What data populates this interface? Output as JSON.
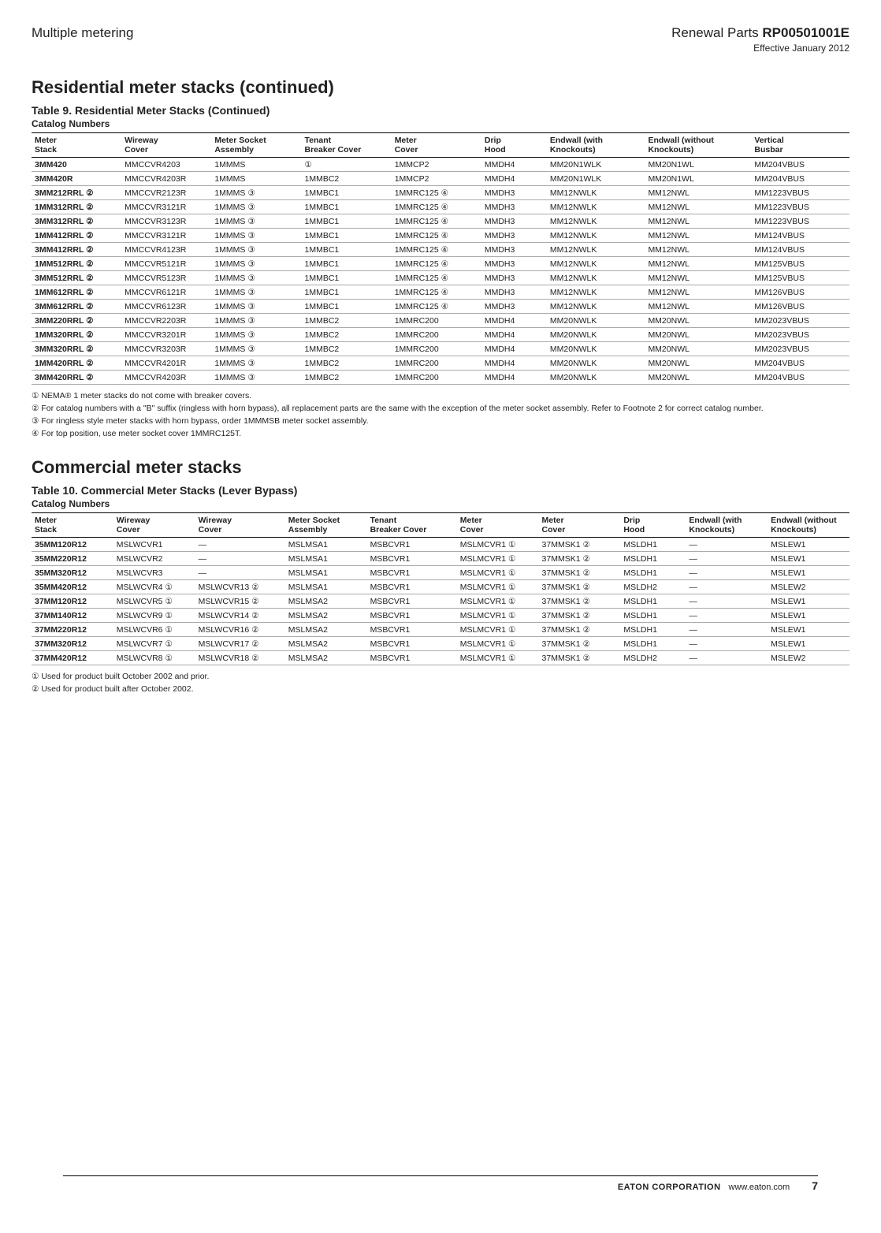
{
  "header": {
    "left": "Multiple metering",
    "right_label": "Renewal Parts ",
    "right_code": "RP00501001E",
    "effective": "Effective January 2012"
  },
  "section1": {
    "title": "Residential meter stacks (continued)",
    "table_caption": "Table 9.  Residential Meter Stacks (Continued)",
    "sub_caption": "Catalog Numbers",
    "headers": [
      "Meter\nStack",
      "Wireway\nCover",
      "Meter Socket\nAssembly",
      "Tenant\nBreaker Cover",
      "Meter\nCover",
      "Drip\nHood",
      "Endwall (with\nKnockouts)",
      "Endwall (without\nKnockouts)",
      "Vertical\nBusbar"
    ],
    "col_widths": [
      "11%",
      "11%",
      "11%",
      "11%",
      "11%",
      "8%",
      "12%",
      "13%",
      "12%"
    ],
    "rows": [
      {
        "c": [
          "3MM420",
          "MMCCVR4203",
          "1MMMS",
          "①",
          "1MMCP2",
          "MMDH4",
          "MM20N1WLK",
          "MM20N1WL",
          "MM204VBUS"
        ],
        "sup": [
          "",
          "",
          "",
          "",
          "",
          "",
          "",
          "",
          ""
        ]
      },
      {
        "c": [
          "3MM420R",
          "MMCCVR4203R",
          "1MMMS",
          "1MMBC2",
          "1MMCP2",
          "MMDH4",
          "MM20N1WLK",
          "MM20N1WL",
          "MM204VBUS"
        ],
        "sup": [
          "",
          "",
          "",
          "",
          "",
          "",
          "",
          "",
          ""
        ]
      },
      {
        "c": [
          "3MM212RRL ②",
          "MMCCVR2123R",
          "1MMMS ③",
          "1MMBC1",
          "1MMRC125 ④",
          "MMDH3",
          "MM12NWLK",
          "MM12NWL",
          "MM1223VBUS"
        ],
        "sup": [
          "",
          "",
          "",
          "",
          "",
          "",
          "",
          "",
          ""
        ]
      },
      {
        "c": [
          "1MM312RRL ②",
          "MMCCVR3121R",
          "1MMMS ③",
          "1MMBC1",
          "1MMRC125 ④",
          "MMDH3",
          "MM12NWLK",
          "MM12NWL",
          "MM1223VBUS"
        ],
        "sup": [
          "",
          "",
          "",
          "",
          "",
          "",
          "",
          "",
          ""
        ]
      },
      {
        "c": [
          "3MM312RRL ②",
          "MMCCVR3123R",
          "1MMMS ③",
          "1MMBC1",
          "1MMRC125 ④",
          "MMDH3",
          "MM12NWLK",
          "MM12NWL",
          "MM1223VBUS"
        ],
        "sup": [
          "",
          "",
          "",
          "",
          "",
          "",
          "",
          "",
          ""
        ]
      },
      {
        "c": [
          "1MM412RRL ②",
          "MMCCVR3121R",
          "1MMMS ③",
          "1MMBC1",
          "1MMRC125 ④",
          "MMDH3",
          "MM12NWLK",
          "MM12NWL",
          "MM124VBUS"
        ],
        "sup": [
          "",
          "",
          "",
          "",
          "",
          "",
          "",
          "",
          ""
        ]
      },
      {
        "c": [
          "3MM412RRL ②",
          "MMCCVR4123R",
          "1MMMS ③",
          "1MMBC1",
          "1MMRC125 ④",
          "MMDH3",
          "MM12NWLK",
          "MM12NWL",
          "MM124VBUS"
        ],
        "sup": [
          "",
          "",
          "",
          "",
          "",
          "",
          "",
          "",
          ""
        ]
      },
      {
        "c": [
          "1MM512RRL ②",
          "MMCCVR5121R",
          "1MMMS ③",
          "1MMBC1",
          "1MMRC125 ④",
          "MMDH3",
          "MM12NWLK",
          "MM12NWL",
          "MM125VBUS"
        ],
        "sup": [
          "",
          "",
          "",
          "",
          "",
          "",
          "",
          "",
          ""
        ]
      },
      {
        "c": [
          "3MM512RRL ②",
          "MMCCVR5123R",
          "1MMMS ③",
          "1MMBC1",
          "1MMRC125 ④",
          "MMDH3",
          "MM12NWLK",
          "MM12NWL",
          "MM125VBUS"
        ],
        "sup": [
          "",
          "",
          "",
          "",
          "",
          "",
          "",
          "",
          ""
        ]
      },
      {
        "c": [
          "1MM612RRL ②",
          "MMCCVR6121R",
          "1MMMS ③",
          "1MMBC1",
          "1MMRC125 ④",
          "MMDH3",
          "MM12NWLK",
          "MM12NWL",
          "MM126VBUS"
        ],
        "sup": [
          "",
          "",
          "",
          "",
          "",
          "",
          "",
          "",
          ""
        ]
      },
      {
        "c": [
          "3MM612RRL ②",
          "MMCCVR6123R",
          "1MMMS ③",
          "1MMBC1",
          "1MMRC125 ④",
          "MMDH3",
          "MM12NWLK",
          "MM12NWL",
          "MM126VBUS"
        ],
        "sup": [
          "",
          "",
          "",
          "",
          "",
          "",
          "",
          "",
          ""
        ]
      },
      {
        "c": [
          "3MM220RRL ②",
          "MMCCVR2203R",
          "1MMMS ③",
          "1MMBC2",
          "1MMRC200",
          "MMDH4",
          "MM20NWLK",
          "MM20NWL",
          "MM2023VBUS"
        ],
        "sup": [
          "",
          "",
          "",
          "",
          "",
          "",
          "",
          "",
          ""
        ]
      },
      {
        "c": [
          "1MM320RRL ②",
          "MMCCVR3201R",
          "1MMMS ③",
          "1MMBC2",
          "1MMRC200",
          "MMDH4",
          "MM20NWLK",
          "MM20NWL",
          "MM2023VBUS"
        ],
        "sup": [
          "",
          "",
          "",
          "",
          "",
          "",
          "",
          "",
          ""
        ]
      },
      {
        "c": [
          "3MM320RRL ②",
          "MMCCVR3203R",
          "1MMMS ③",
          "1MMBC2",
          "1MMRC200",
          "MMDH4",
          "MM20NWLK",
          "MM20NWL",
          "MM2023VBUS"
        ],
        "sup": [
          "",
          "",
          "",
          "",
          "",
          "",
          "",
          "",
          ""
        ]
      },
      {
        "c": [
          "1MM420RRL ②",
          "MMCCVR4201R",
          "1MMMS ③",
          "1MMBC2",
          "1MMRC200",
          "MMDH4",
          "MM20NWLK",
          "MM20NWL",
          "MM204VBUS"
        ],
        "sup": [
          "",
          "",
          "",
          "",
          "",
          "",
          "",
          "",
          ""
        ]
      },
      {
        "c": [
          "3MM420RRL ②",
          "MMCCVR4203R",
          "1MMMS ③",
          "1MMBC2",
          "1MMRC200",
          "MMDH4",
          "MM20NWLK",
          "MM20NWL",
          "MM204VBUS"
        ],
        "sup": [
          "",
          "",
          "",
          "",
          "",
          "",
          "",
          "",
          ""
        ]
      }
    ],
    "footnotes": [
      "① NEMA® 1 meter stacks do not come with breaker covers.",
      "② For catalog numbers with a \"B\" suffix (ringless with horn bypass), all replacement parts are the same with the exception of the meter socket assembly. Refer to Footnote 2 for correct catalog number.",
      "③ For ringless style meter stacks with horn bypass, order 1MMMSB meter socket assembly.",
      "④ For top position, use meter socket cover 1MMRC125T."
    ]
  },
  "section2": {
    "title": "Commercial meter stacks",
    "table_caption": "Table 10.  Commercial Meter Stacks (Lever Bypass)",
    "sub_caption": "Catalog Numbers",
    "headers": [
      "Meter\nStack",
      "Wireway\nCover",
      "Wireway\nCover",
      "Meter Socket\nAssembly",
      "Tenant\nBreaker Cover",
      "Meter\nCover",
      "Meter\nCover",
      "Drip\nHood",
      "Endwall (with\nKnockouts)",
      "Endwall (without\nKnockouts)"
    ],
    "col_widths": [
      "10%",
      "10%",
      "11%",
      "10%",
      "11%",
      "10%",
      "10%",
      "8%",
      "10%",
      "10%"
    ],
    "rows": [
      {
        "c": [
          "35MM120R12",
          "MSLWCVR1",
          "—",
          "MSLMSA1",
          "MSBCVR1",
          "MSLMCVR1 ①",
          "37MMSK1 ②",
          "MSLDH1",
          "—",
          "MSLEW1"
        ]
      },
      {
        "c": [
          "35MM220R12",
          "MSLWCVR2",
          "—",
          "MSLMSA1",
          "MSBCVR1",
          "MSLMCVR1 ①",
          "37MMSK1 ②",
          "MSLDH1",
          "—",
          "MSLEW1"
        ]
      },
      {
        "c": [
          "35MM320R12",
          "MSLWCVR3",
          "—",
          "MSLMSA1",
          "MSBCVR1",
          "MSLMCVR1 ①",
          "37MMSK1 ②",
          "MSLDH1",
          "—",
          "MSLEW1"
        ]
      },
      {
        "c": [
          "35MM420R12",
          "MSLWCVR4 ①",
          "MSLWCVR13 ②",
          "MSLMSA1",
          "MSBCVR1",
          "MSLMCVR1 ①",
          "37MMSK1 ②",
          "MSLDH2",
          "—",
          "MSLEW2"
        ]
      },
      {
        "c": [
          "37MM120R12",
          "MSLWCVR5 ①",
          "MSLWCVR15 ②",
          "MSLMSA2",
          "MSBCVR1",
          "MSLMCVR1 ①",
          "37MMSK1 ②",
          "MSLDH1",
          "—",
          "MSLEW1"
        ]
      },
      {
        "c": [
          "37MM140R12",
          "MSLWCVR9 ①",
          "MSLWCVR14 ②",
          "MSLMSA2",
          "MSBCVR1",
          "MSLMCVR1 ①",
          "37MMSK1 ②",
          "MSLDH1",
          "—",
          "MSLEW1"
        ]
      },
      {
        "c": [
          "37MM220R12",
          "MSLWCVR6 ①",
          "MSLWCVR16 ②",
          "MSLMSA2",
          "MSBCVR1",
          "MSLMCVR1 ①",
          "37MMSK1 ②",
          "MSLDH1",
          "—",
          "MSLEW1"
        ]
      },
      {
        "c": [
          "37MM320R12",
          "MSLWCVR7 ①",
          "MSLWCVR17 ②",
          "MSLMSA2",
          "MSBCVR1",
          "MSLMCVR1 ①",
          "37MMSK1 ②",
          "MSLDH1",
          "—",
          "MSLEW1"
        ]
      },
      {
        "c": [
          "37MM420R12",
          "MSLWCVR8 ①",
          "MSLWCVR18 ②",
          "MSLMSA2",
          "MSBCVR1",
          "MSLMCVR1 ①",
          "37MMSK1 ②",
          "MSLDH2",
          "—",
          "MSLEW2"
        ]
      }
    ],
    "footnotes": [
      "① Used for product built October 2002 and prior.",
      "② Used for product built after October 2002."
    ]
  },
  "footer": {
    "company": "EATON CORPORATION",
    "url": "www.eaton.com",
    "page": "7"
  }
}
